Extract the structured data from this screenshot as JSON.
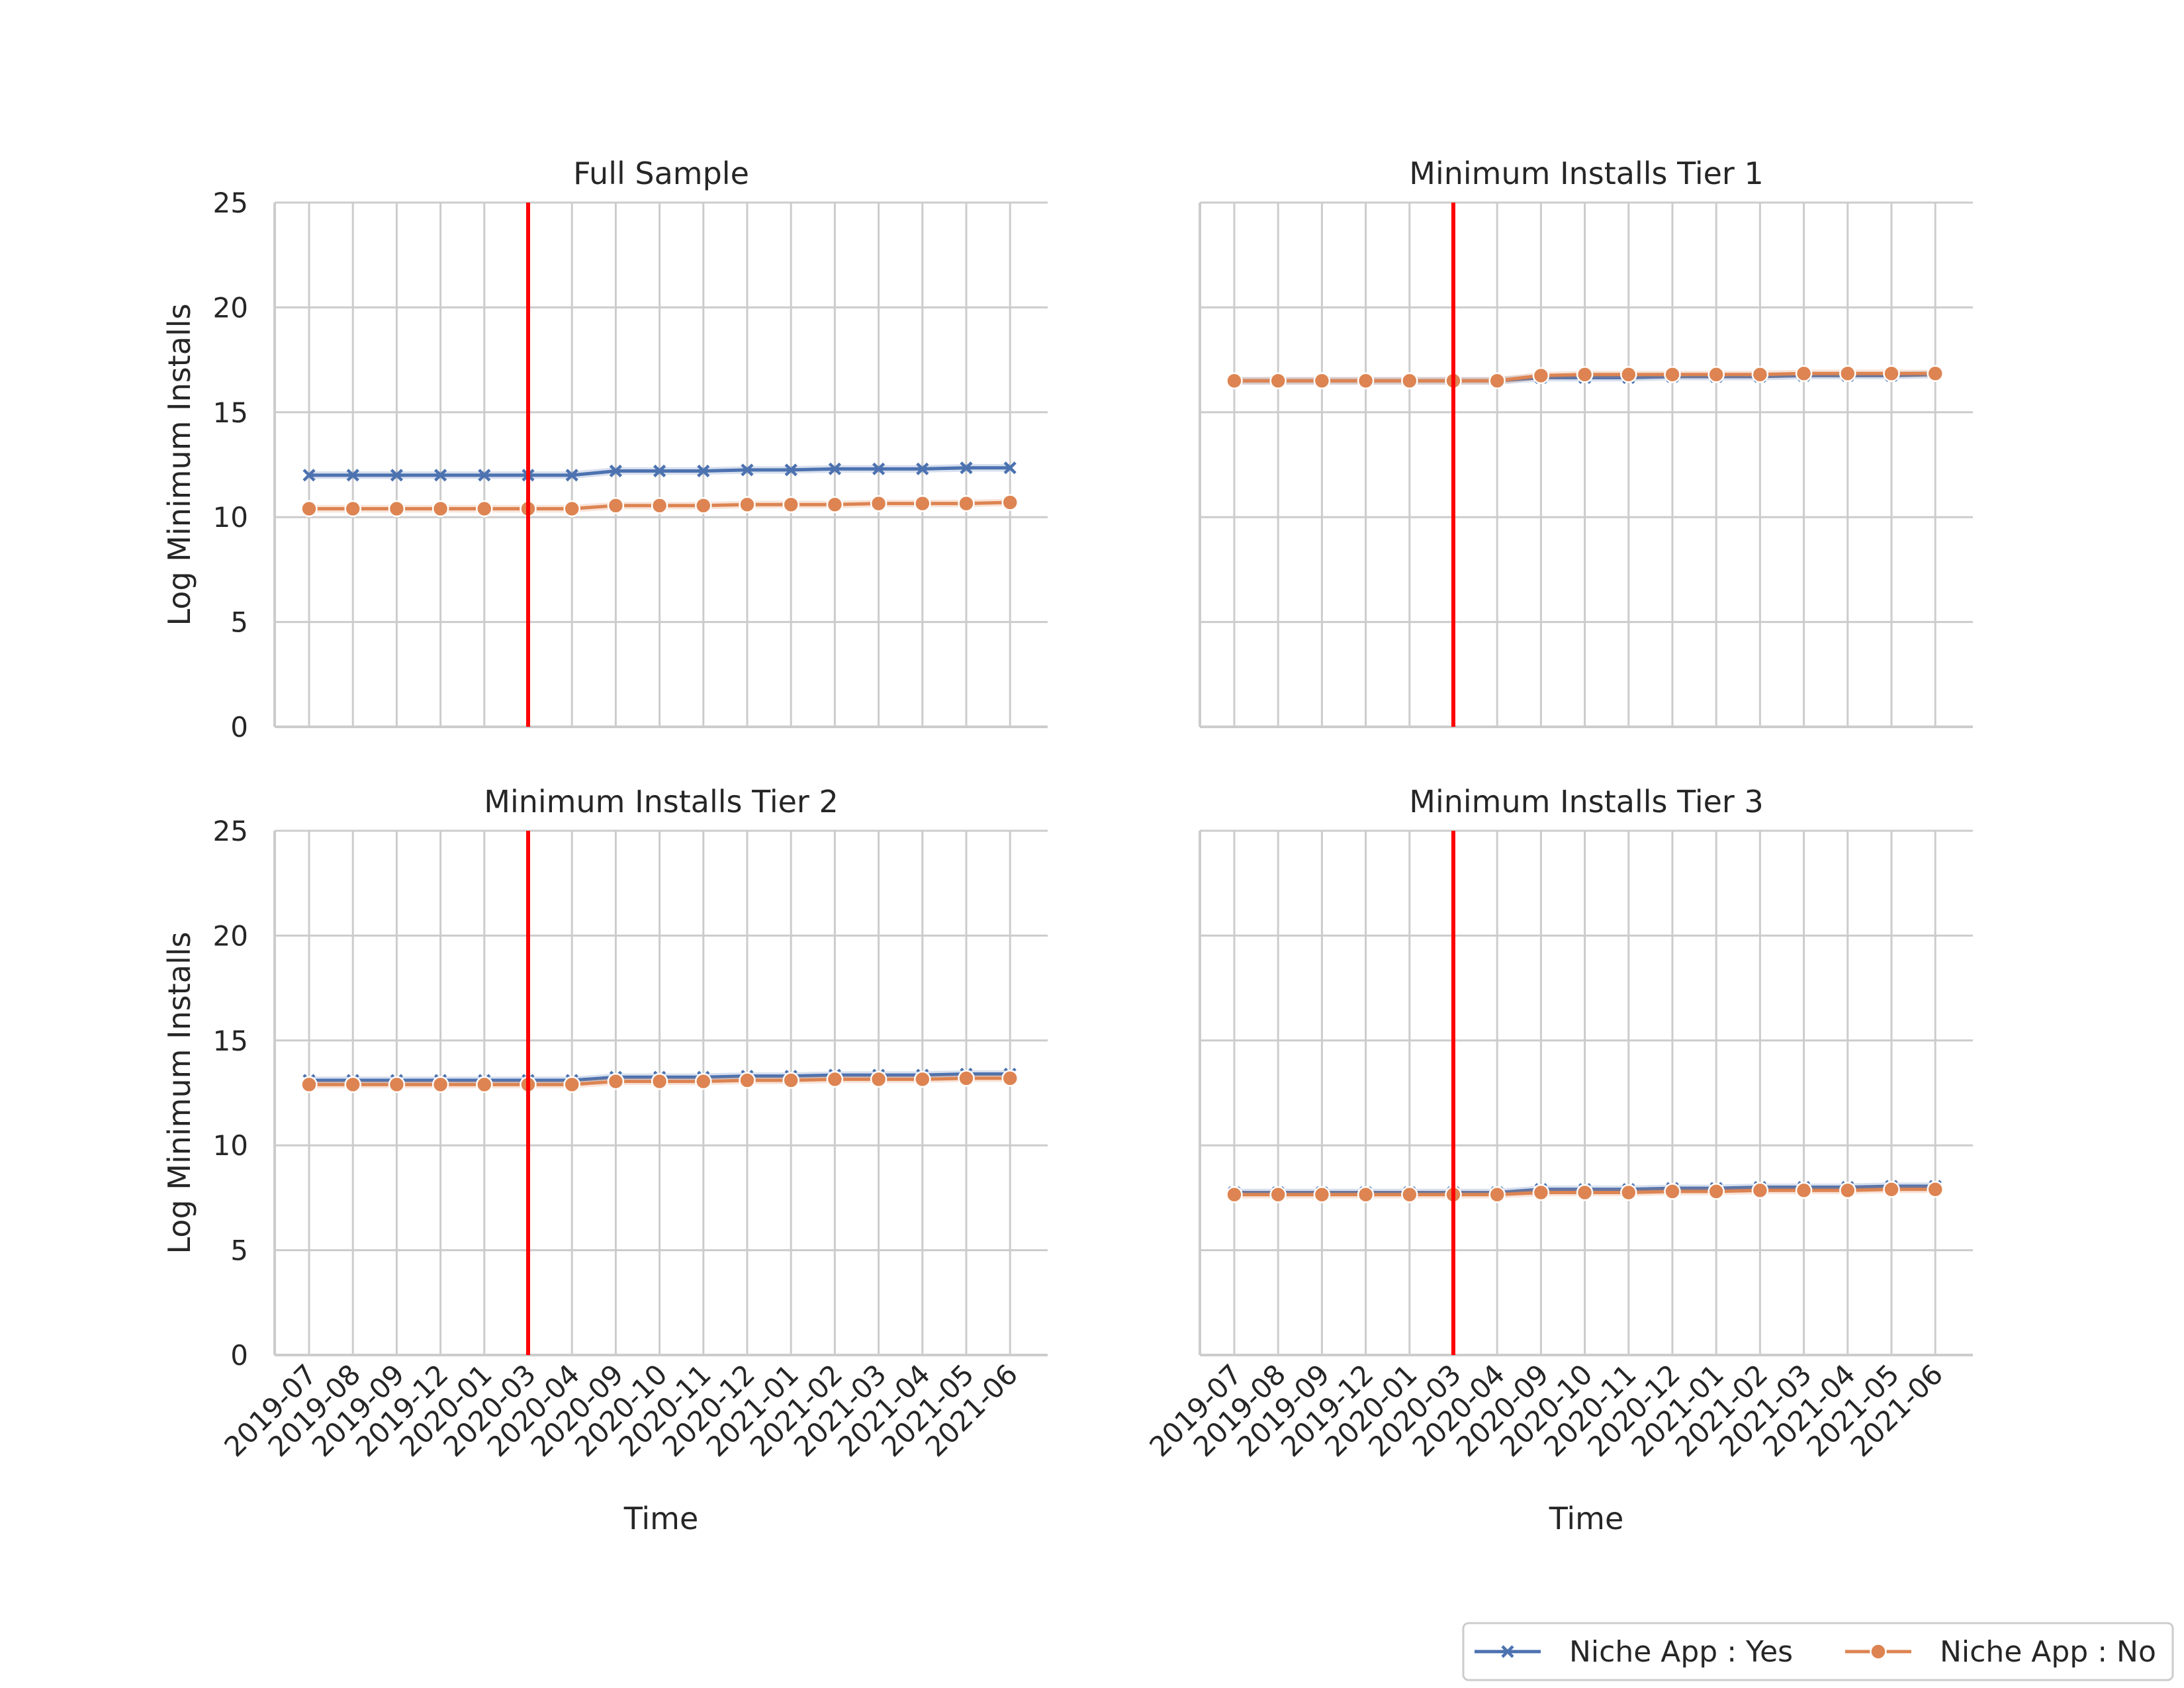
{
  "chart_data": {
    "type": "line",
    "grid": true,
    "legend_position": "bottom-right",
    "x": [
      "2019-07",
      "2019-08",
      "2019-09",
      "2019-12",
      "2020-01",
      "2020-03",
      "2020-04",
      "2020-09",
      "2020-10",
      "2020-11",
      "2020-12",
      "2021-01",
      "2021-02",
      "2021-03",
      "2021-04",
      "2021-05",
      "2021-06"
    ],
    "ylim": [
      0,
      25
    ],
    "yticks": [
      0,
      5,
      10,
      15,
      20,
      25
    ],
    "ylabel": "Log Minimum Installs",
    "xlabel": "Time",
    "vline_at": "2020-03",
    "vline_color": "#ff0000",
    "legend": [
      {
        "name": "Niche App : Yes",
        "color": "#4c72b0",
        "marker": "x"
      },
      {
        "name": "Niche App : No",
        "color": "#dd8452",
        "marker": "o"
      }
    ],
    "panels": [
      {
        "title": "Full Sample",
        "series": [
          {
            "name": "Niche App : Yes",
            "values": [
              12.0,
              12.0,
              12.0,
              12.0,
              12.0,
              12.0,
              12.0,
              12.2,
              12.2,
              12.2,
              12.25,
              12.25,
              12.3,
              12.3,
              12.3,
              12.35,
              12.35
            ]
          },
          {
            "name": "Niche App : No",
            "values": [
              10.4,
              10.4,
              10.4,
              10.4,
              10.4,
              10.4,
              10.4,
              10.55,
              10.55,
              10.55,
              10.6,
              10.6,
              10.6,
              10.65,
              10.65,
              10.65,
              10.7
            ]
          }
        ]
      },
      {
        "title": "Minimum Installs Tier 1",
        "series": [
          {
            "name": "Niche App : Yes",
            "values": [
              16.5,
              16.5,
              16.5,
              16.5,
              16.5,
              16.5,
              16.5,
              16.65,
              16.65,
              16.65,
              16.7,
              16.7,
              16.7,
              16.75,
              16.75,
              16.75,
              16.8
            ]
          },
          {
            "name": "Niche App : No",
            "values": [
              16.5,
              16.5,
              16.5,
              16.5,
              16.5,
              16.5,
              16.5,
              16.75,
              16.8,
              16.8,
              16.8,
              16.8,
              16.8,
              16.85,
              16.85,
              16.85,
              16.85
            ]
          }
        ]
      },
      {
        "title": "Minimum Installs Tier 2",
        "series": [
          {
            "name": "Niche App : Yes",
            "values": [
              13.1,
              13.1,
              13.1,
              13.1,
              13.1,
              13.1,
              13.1,
              13.25,
              13.25,
              13.25,
              13.3,
              13.3,
              13.35,
              13.35,
              13.35,
              13.4,
              13.4
            ]
          },
          {
            "name": "Niche App : No",
            "values": [
              12.9,
              12.9,
              12.9,
              12.9,
              12.9,
              12.9,
              12.9,
              13.05,
              13.05,
              13.05,
              13.1,
              13.1,
              13.15,
              13.15,
              13.15,
              13.2,
              13.2
            ]
          }
        ]
      },
      {
        "title": "Minimum Installs Tier 3",
        "series": [
          {
            "name": "Niche App : Yes",
            "values": [
              7.75,
              7.75,
              7.75,
              7.75,
              7.75,
              7.75,
              7.75,
              7.9,
              7.9,
              7.9,
              7.95,
              7.95,
              8.0,
              8.0,
              8.0,
              8.05,
              8.05
            ]
          },
          {
            "name": "Niche App : No",
            "values": [
              7.65,
              7.65,
              7.65,
              7.65,
              7.65,
              7.65,
              7.65,
              7.75,
              7.75,
              7.75,
              7.8,
              7.8,
              7.85,
              7.85,
              7.85,
              7.9,
              7.9
            ]
          }
        ]
      }
    ]
  }
}
